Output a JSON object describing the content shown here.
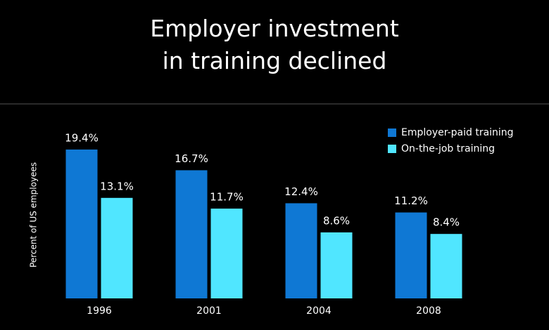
{
  "chart_data": {
    "type": "bar",
    "title": "Employer investment in training declined",
    "y_label": "Percent of US employees",
    "categories": [
      "1996",
      "2001",
      "2004",
      "2008"
    ],
    "series": [
      {
        "name": "Employer-paid training",
        "color": "#0f78d4",
        "values": [
          19.4,
          16.7,
          12.4,
          11.2
        ],
        "value_labels": [
          "19.4%",
          "16.7%",
          "12.4%",
          "11.2%"
        ]
      },
      {
        "name": "On-the-job training",
        "color": "#50e6ff",
        "values": [
          13.1,
          11.7,
          8.6,
          8.4
        ],
        "value_labels": [
          "13.1%",
          "11.7%",
          "8.6%",
          "8.4%"
        ]
      }
    ],
    "legend": "top-right"
  }
}
